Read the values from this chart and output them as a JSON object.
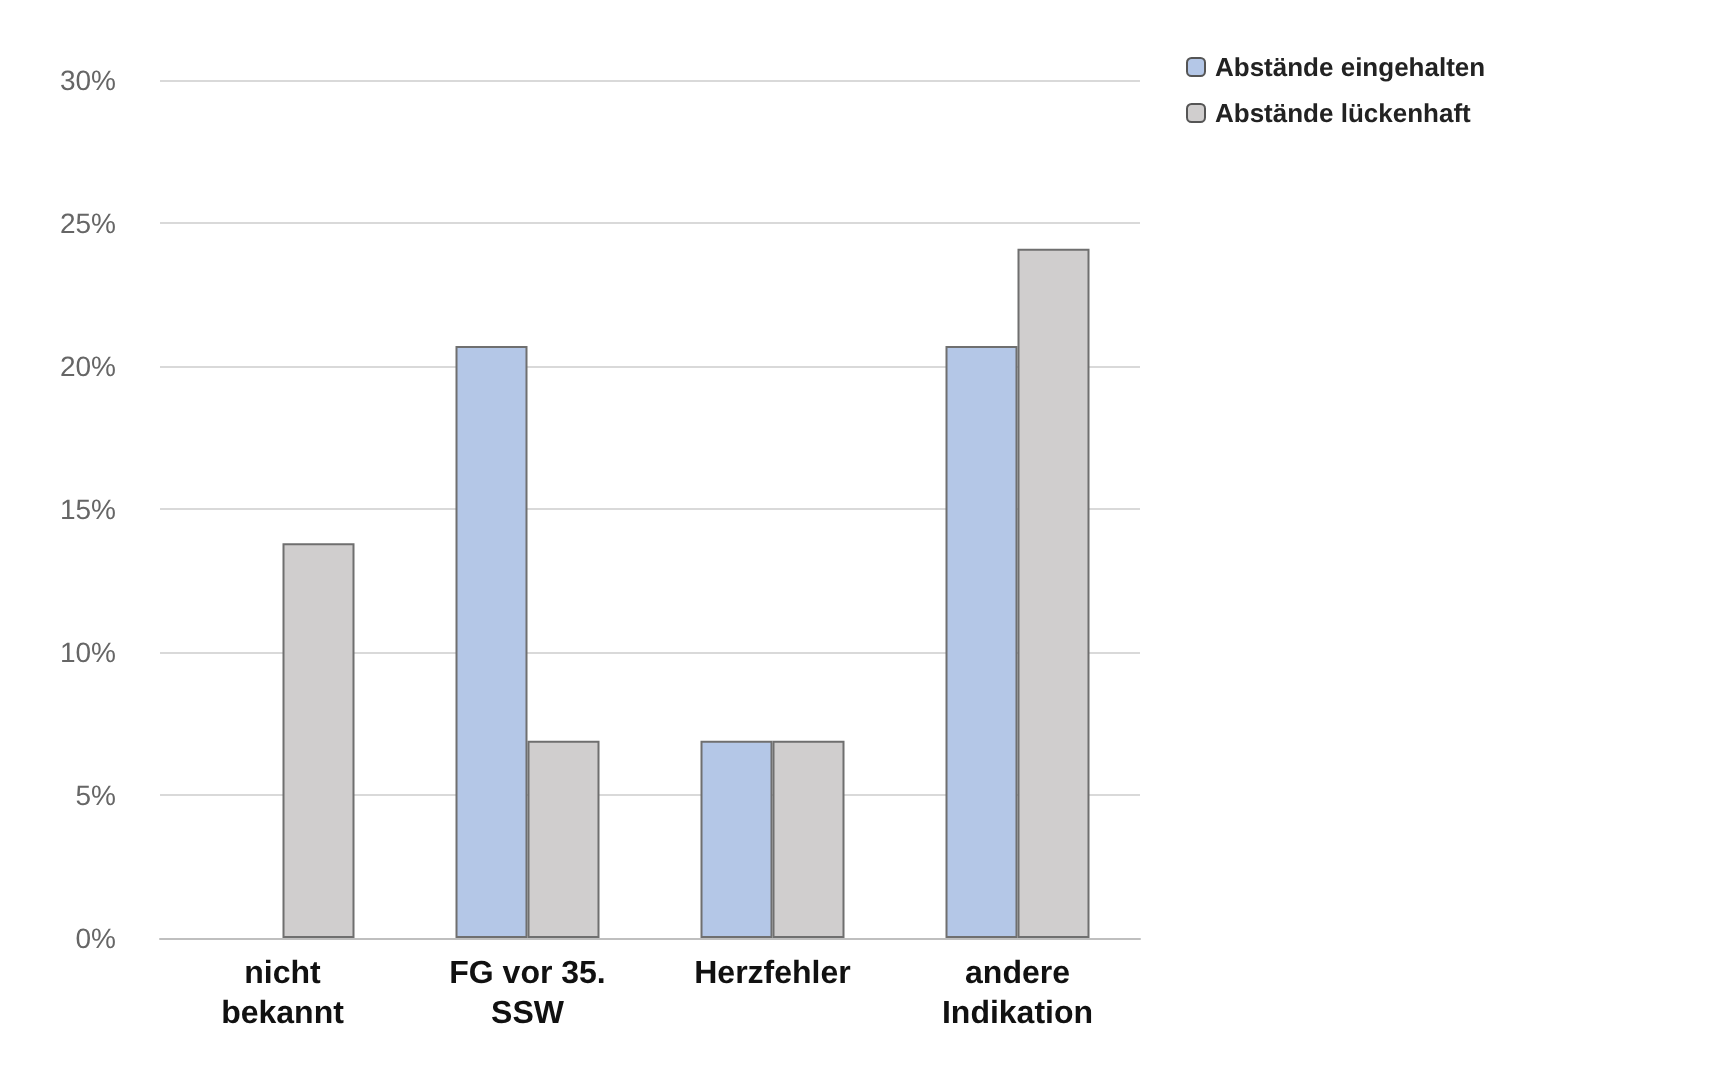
{
  "chart_data": {
    "type": "bar",
    "categories": [
      "nicht\nbekannt",
      "FG vor 35.\nSSW",
      "Herzfehler",
      "andere\nIndikation"
    ],
    "series": [
      {
        "name": "Abstände eingehalten",
        "color": "#b4c7e7",
        "values": [
          0,
          20.7,
          6.9,
          20.7
        ]
      },
      {
        "name": "Abstände lückenhaft",
        "color": "#d0cece",
        "values": [
          13.8,
          6.9,
          6.9,
          24.1
        ]
      }
    ],
    "ylim": [
      0,
      30
    ],
    "yticks": [
      {
        "value": 0,
        "label": "0%"
      },
      {
        "value": 5,
        "label": "5%"
      },
      {
        "value": 10,
        "label": "10%"
      },
      {
        "value": 15,
        "label": "15%"
      },
      {
        "value": 20,
        "label": "20%"
      },
      {
        "value": 25,
        "label": "25%"
      },
      {
        "value": 30,
        "label": "30%"
      }
    ],
    "grid": "y",
    "legend": "top right"
  }
}
